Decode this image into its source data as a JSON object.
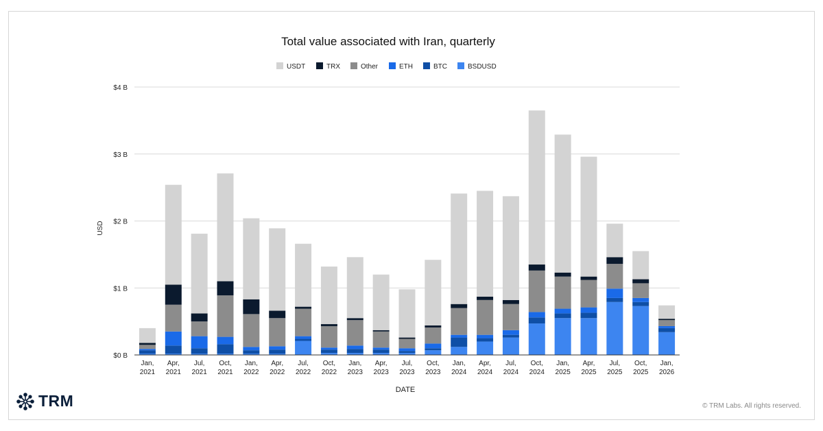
{
  "brand": {
    "name": "TRM",
    "copyright": "© TRM Labs. All rights reserved."
  },
  "colors": {
    "USDT": "#d3d3d3",
    "TRX": "#0b1a2e",
    "Other": "#8c8c8c",
    "ETH": "#1a6ae8",
    "BTC": "#0f4fa6",
    "BSDUSD": "#3d85f0",
    "grid": "#d9d9d9",
    "axis": "#333333",
    "text": "#222222"
  },
  "chart_data": {
    "type": "bar",
    "stacked": true,
    "title": "Total value associated with Iran, quarterly",
    "xlabel": "DATE",
    "ylabel": "USD",
    "ylim": [
      0,
      4
    ],
    "yticks": [
      0,
      1,
      2,
      3,
      4
    ],
    "ytick_labels": [
      "$0 B",
      "$1 B",
      "$2 B",
      "$3 B",
      "$4 B"
    ],
    "legend_position": "top-center",
    "categories": [
      [
        "Jan,",
        "2021"
      ],
      [
        "Apr,",
        "2021"
      ],
      [
        "Jul,",
        "2021"
      ],
      [
        "Oct,",
        "2021"
      ],
      [
        "Jan,",
        "2022"
      ],
      [
        "Apr,",
        "2022"
      ],
      [
        "Jul,",
        "2022"
      ],
      [
        "Oct,",
        "2022"
      ],
      [
        "Jan,",
        "2023"
      ],
      [
        "Apr,",
        "2023"
      ],
      [
        "Jul,",
        "2023"
      ],
      [
        "Oct,",
        "2023"
      ],
      [
        "Jan,",
        "2024"
      ],
      [
        "Apr,",
        "2024"
      ],
      [
        "Jul,",
        "2024"
      ],
      [
        "Oct,",
        "2024"
      ],
      [
        "Jan,",
        "2025"
      ],
      [
        "Apr,",
        "2025"
      ],
      [
        "Jul,",
        "2025"
      ],
      [
        "Oct,",
        "2025"
      ],
      [
        "Jan,",
        "2026"
      ]
    ],
    "legend_order": [
      "USDT",
      "TRX",
      "Other",
      "ETH",
      "BTC",
      "BSDUSD"
    ],
    "series": [
      {
        "name": "BSDUSD",
        "values": [
          0.02,
          0.02,
          0.02,
          0.02,
          0.02,
          0.02,
          0.21,
          0.03,
          0.03,
          0.03,
          0.03,
          0.07,
          0.12,
          0.2,
          0.26,
          0.47,
          0.55,
          0.55,
          0.79,
          0.73,
          0.34
        ]
      },
      {
        "name": "BTC",
        "values": [
          0.05,
          0.12,
          0.08,
          0.14,
          0.05,
          0.06,
          0.03,
          0.05,
          0.06,
          0.05,
          0.03,
          0.03,
          0.14,
          0.05,
          0.04,
          0.09,
          0.07,
          0.08,
          0.06,
          0.06,
          0.06
        ]
      },
      {
        "name": "ETH",
        "values": [
          0.02,
          0.21,
          0.18,
          0.11,
          0.05,
          0.05,
          0.04,
          0.03,
          0.05,
          0.03,
          0.04,
          0.07,
          0.04,
          0.05,
          0.07,
          0.08,
          0.07,
          0.08,
          0.14,
          0.06,
          0.03
        ]
      },
      {
        "name": "Other",
        "values": [
          0.06,
          0.4,
          0.22,
          0.62,
          0.49,
          0.42,
          0.41,
          0.32,
          0.38,
          0.24,
          0.14,
          0.24,
          0.4,
          0.52,
          0.39,
          0.62,
          0.48,
          0.41,
          0.37,
          0.22,
          0.09
        ]
      },
      {
        "name": "TRX",
        "values": [
          0.03,
          0.3,
          0.12,
          0.21,
          0.22,
          0.11,
          0.03,
          0.03,
          0.03,
          0.02,
          0.02,
          0.03,
          0.06,
          0.05,
          0.06,
          0.09,
          0.06,
          0.05,
          0.1,
          0.06,
          0.02
        ]
      },
      {
        "name": "USDT",
        "values": [
          0.22,
          1.49,
          1.19,
          1.61,
          1.21,
          1.23,
          0.94,
          0.86,
          0.91,
          0.83,
          0.72,
          0.98,
          1.65,
          1.58,
          1.55,
          2.3,
          2.06,
          1.79,
          0.5,
          0.42,
          0.2
        ]
      }
    ]
  }
}
